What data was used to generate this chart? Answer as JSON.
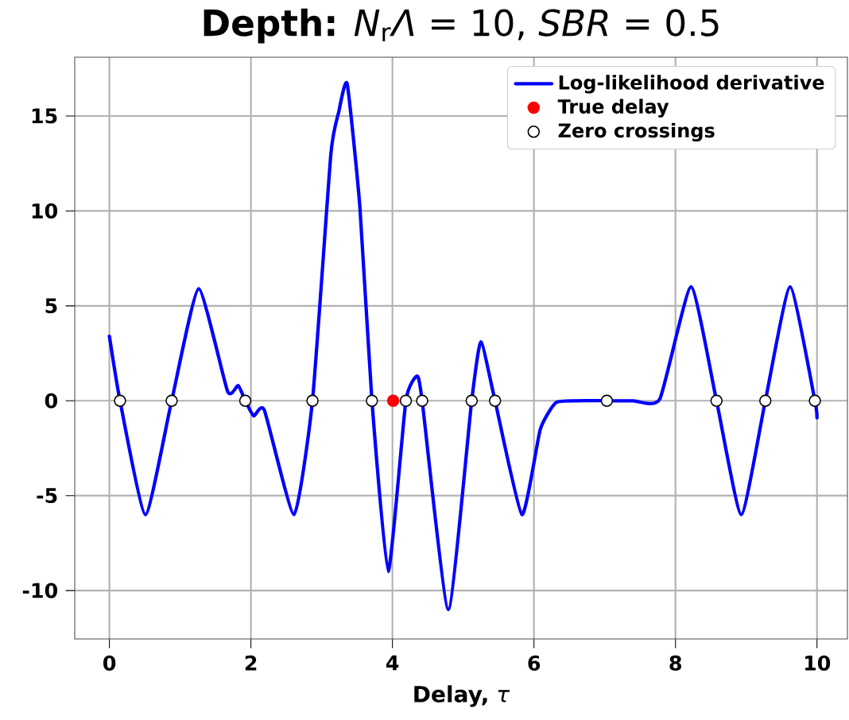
{
  "chart_data": {
    "type": "line",
    "title": "**Depth:** *N*$_{r}$*Λ* = 10, *SBR* = 0.5",
    "xlabel": "**Delay,** *τ*",
    "xlim": [
      -0.49,
      10.43
    ],
    "ylim": [
      -12.55,
      18.1
    ],
    "xticks": [
      0,
      2,
      4,
      6,
      8,
      10
    ],
    "yticks": [
      -10,
      -5,
      0,
      5,
      10,
      15
    ],
    "grid": true,
    "legend": "top right",
    "series": [
      {
        "name": "Log-likelihood derivative",
        "color": "#0000ff",
        "marker": "none",
        "x": [
          0,
          0.15,
          0.51,
          0.88,
          1.26,
          1.67,
          1.82,
          1.92,
          2.04,
          2.19,
          2.61,
          2.87,
          3.13,
          3.24,
          3.36,
          3.54,
          3.71,
          3.94,
          4.19,
          4.35,
          4.42,
          4.79,
          5.12,
          5.25,
          5.45,
          5.83,
          6.09,
          6.31,
          6.6,
          7.03,
          7.4,
          7.78,
          8.22,
          8.58,
          8.93,
          9.27,
          9.62,
          9.97,
          10.0
        ],
        "values": [
          3.4,
          0,
          -6.0,
          0,
          5.9,
          0.5,
          0.8,
          0,
          -0.8,
          -0.5,
          -6.0,
          0,
          13.0,
          15.2,
          16.7,
          10.2,
          0,
          -9.0,
          0,
          1.3,
          0,
          -11.0,
          0,
          3.1,
          0,
          -6.0,
          -1.5,
          -0.1,
          0,
          0,
          0,
          0.1,
          6.0,
          0,
          -6.0,
          0,
          6.0,
          0,
          -0.9
        ]
      },
      {
        "name": "True delay",
        "type": "scatter",
        "color": "#ff0000",
        "marker": "circle",
        "x": [
          4.01
        ],
        "values": [
          0
        ]
      },
      {
        "name": "Zero crossings",
        "type": "scatter",
        "color": "#000000",
        "marker": "circle",
        "x": [
          0.15,
          0.88,
          1.92,
          2.87,
          3.71,
          4.19,
          4.42,
          5.12,
          5.45,
          7.03,
          8.58,
          9.27,
          9.97
        ],
        "values": [
          0,
          0,
          0,
          0,
          0,
          0,
          0,
          0,
          0,
          0,
          0,
          0,
          0
        ]
      }
    ]
  }
}
